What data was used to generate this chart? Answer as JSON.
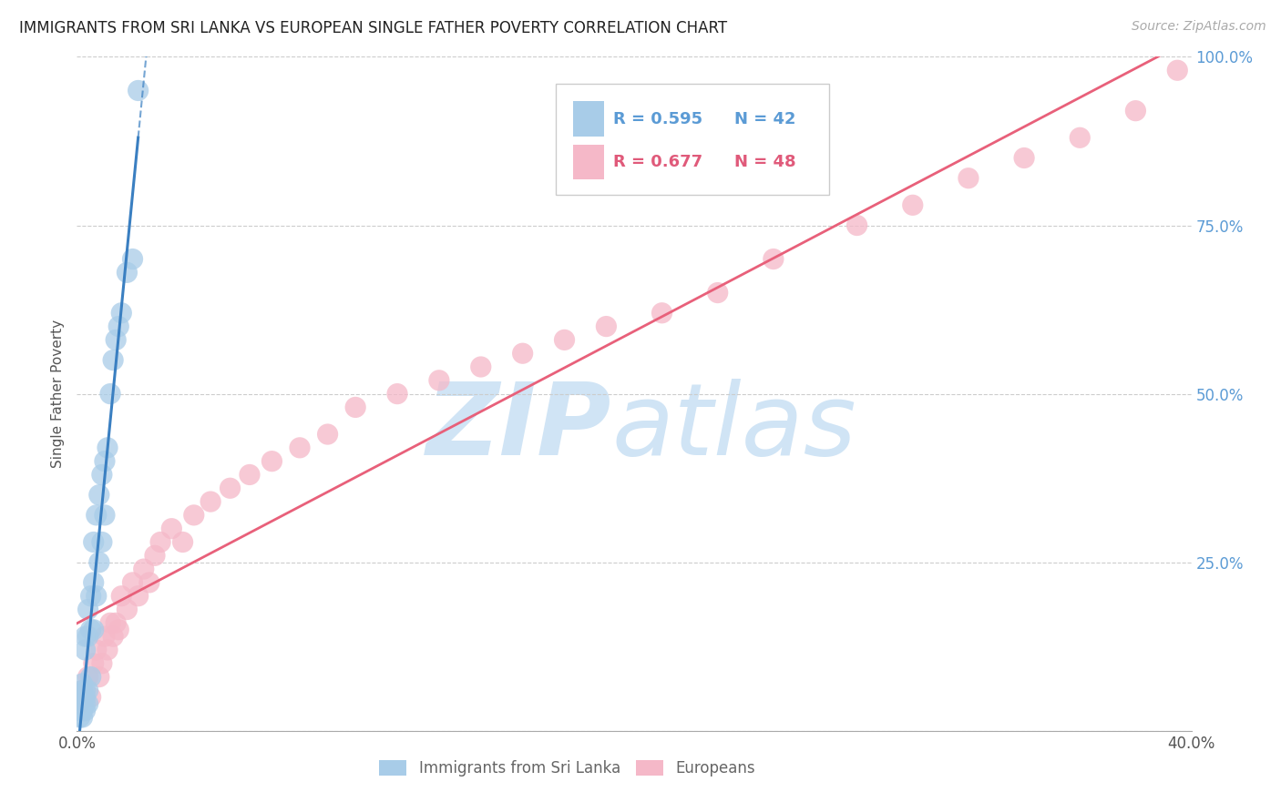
{
  "title": "IMMIGRANTS FROM SRI LANKA VS EUROPEAN SINGLE FATHER POVERTY CORRELATION CHART",
  "source": "Source: ZipAtlas.com",
  "ylabel": "Single Father Poverty",
  "xlim": [
    0,
    0.4
  ],
  "ylim": [
    0,
    1.0
  ],
  "legend_r1": "R = 0.595",
  "legend_n1": "N = 42",
  "legend_r2": "R = 0.677",
  "legend_n2": "N = 48",
  "blue_color": "#a8cce8",
  "pink_color": "#f5b8c8",
  "blue_line_color": "#3a7fc1",
  "pink_line_color": "#e8607a",
  "legend_blue_text": "#5b9bd5",
  "legend_pink_text": "#e05a7a",
  "watermark_color": "#d0e4f5",
  "sri_lanka_x": [
    0.001,
    0.001,
    0.001,
    0.002,
    0.002,
    0.002,
    0.002,
    0.002,
    0.002,
    0.003,
    0.003,
    0.003,
    0.003,
    0.003,
    0.003,
    0.004,
    0.004,
    0.004,
    0.004,
    0.005,
    0.005,
    0.005,
    0.006,
    0.006,
    0.006,
    0.007,
    0.007,
    0.008,
    0.008,
    0.009,
    0.009,
    0.01,
    0.01,
    0.011,
    0.012,
    0.013,
    0.014,
    0.015,
    0.016,
    0.018,
    0.02,
    0.022
  ],
  "sri_lanka_y": [
    0.02,
    0.03,
    0.04,
    0.02,
    0.03,
    0.04,
    0.05,
    0.06,
    0.07,
    0.03,
    0.04,
    0.05,
    0.06,
    0.12,
    0.14,
    0.04,
    0.06,
    0.14,
    0.18,
    0.08,
    0.15,
    0.2,
    0.15,
    0.22,
    0.28,
    0.2,
    0.32,
    0.25,
    0.35,
    0.28,
    0.38,
    0.32,
    0.4,
    0.42,
    0.5,
    0.55,
    0.58,
    0.6,
    0.62,
    0.68,
    0.7,
    0.95
  ],
  "europeans_x": [
    0.001,
    0.002,
    0.004,
    0.005,
    0.006,
    0.007,
    0.008,
    0.009,
    0.01,
    0.011,
    0.012,
    0.013,
    0.014,
    0.015,
    0.016,
    0.018,
    0.02,
    0.022,
    0.024,
    0.026,
    0.028,
    0.03,
    0.034,
    0.038,
    0.042,
    0.048,
    0.055,
    0.062,
    0.07,
    0.08,
    0.09,
    0.1,
    0.115,
    0.13,
    0.145,
    0.16,
    0.175,
    0.19,
    0.21,
    0.23,
    0.25,
    0.28,
    0.3,
    0.32,
    0.34,
    0.36,
    0.38,
    0.395
  ],
  "europeans_y": [
    0.04,
    0.06,
    0.08,
    0.05,
    0.1,
    0.12,
    0.08,
    0.1,
    0.14,
    0.12,
    0.16,
    0.14,
    0.16,
    0.15,
    0.2,
    0.18,
    0.22,
    0.2,
    0.24,
    0.22,
    0.26,
    0.28,
    0.3,
    0.28,
    0.32,
    0.34,
    0.36,
    0.38,
    0.4,
    0.42,
    0.44,
    0.48,
    0.5,
    0.52,
    0.54,
    0.56,
    0.58,
    0.6,
    0.62,
    0.65,
    0.7,
    0.75,
    0.78,
    0.82,
    0.85,
    0.88,
    0.92,
    0.98
  ]
}
